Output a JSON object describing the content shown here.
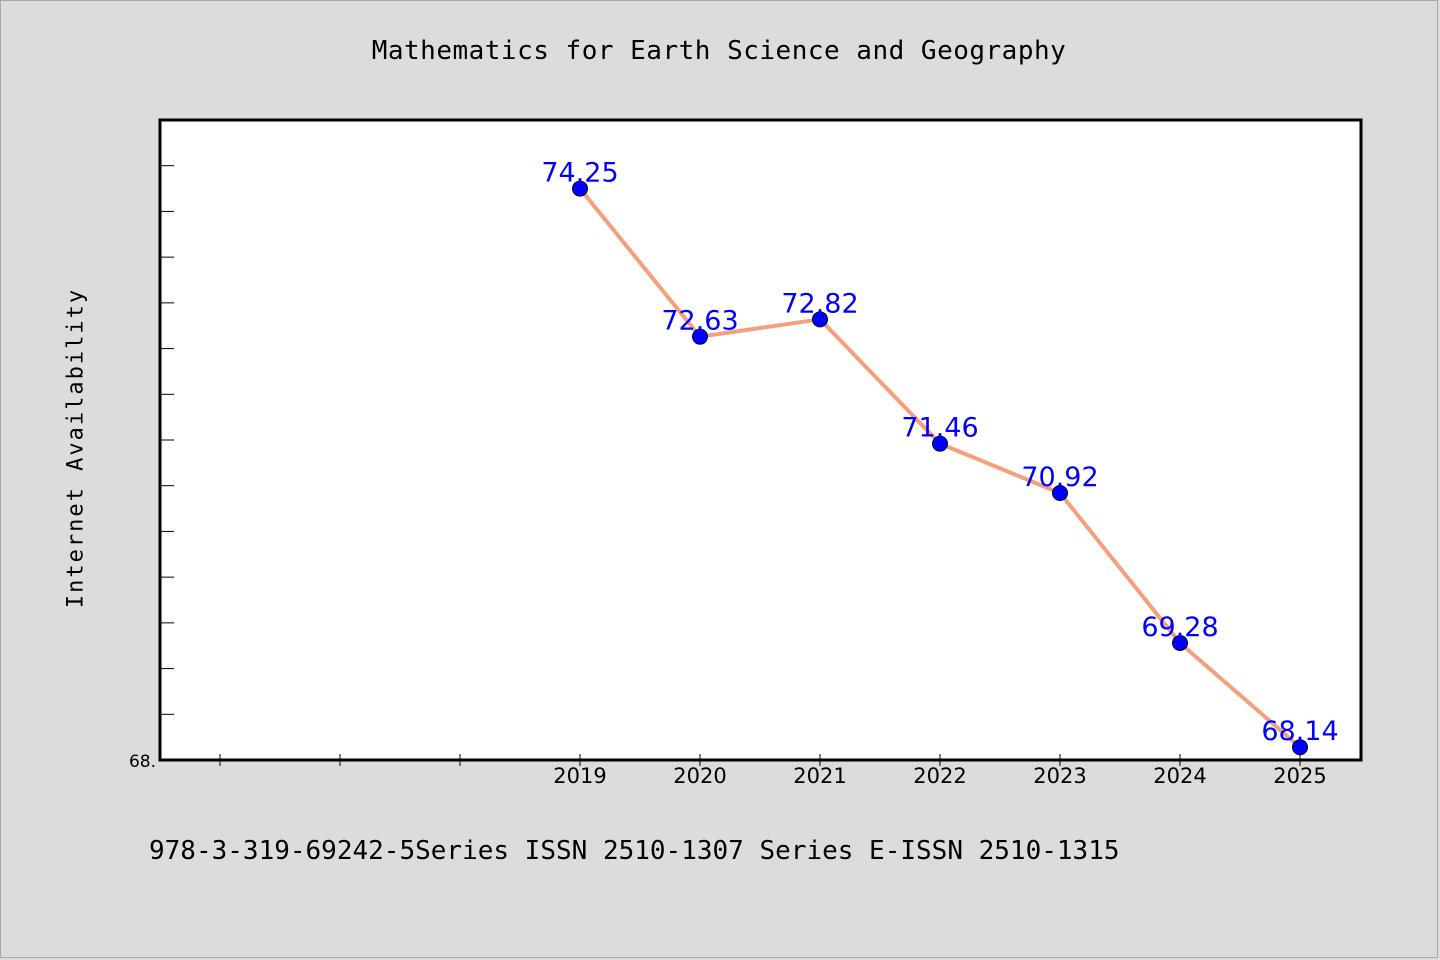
{
  "chart_data": {
    "type": "line",
    "title": "Mathematics for Earth Science and Geography",
    "xlabel": "",
    "ylabel": "Internet Availability",
    "x": [
      "2019",
      "2020",
      "2021",
      "2022",
      "2023",
      "2024",
      "2025"
    ],
    "series": [
      {
        "values": [
          74.25,
          72.63,
          72.82,
          71.46,
          70.92,
          69.28,
          68.14
        ],
        "labels": [
          "74.25",
          "72.63",
          "72.82",
          "71.46",
          "70.92",
          "69.28",
          "68.14"
        ]
      }
    ],
    "ylim": [
      68.0,
      75.0
    ],
    "y_tick_label": "68.",
    "grid": false,
    "legend": "none",
    "colors": {
      "line": "#f4a07c",
      "marker": "#0000ff",
      "label": "#0000ff"
    }
  },
  "footer": "978-3-319-69242-5Series ISSN 2510-1307 Series E-ISSN 2510-1315"
}
